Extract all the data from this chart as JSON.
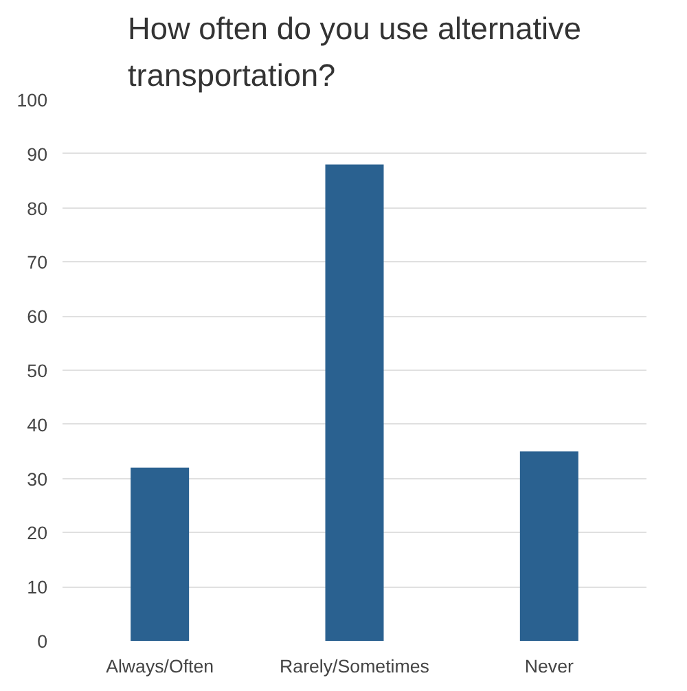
{
  "chart_data": {
    "type": "bar",
    "title": "How often do you use alternative transportation?",
    "categories": [
      "Always/Often",
      "Rarely/Sometimes",
      "Never"
    ],
    "values": [
      32,
      88,
      35
    ],
    "color": "#2a6190",
    "ylim": [
      0,
      100
    ],
    "yticks": [
      0,
      10,
      20,
      30,
      40,
      50,
      60,
      70,
      80,
      90,
      100
    ],
    "grid": "y"
  }
}
